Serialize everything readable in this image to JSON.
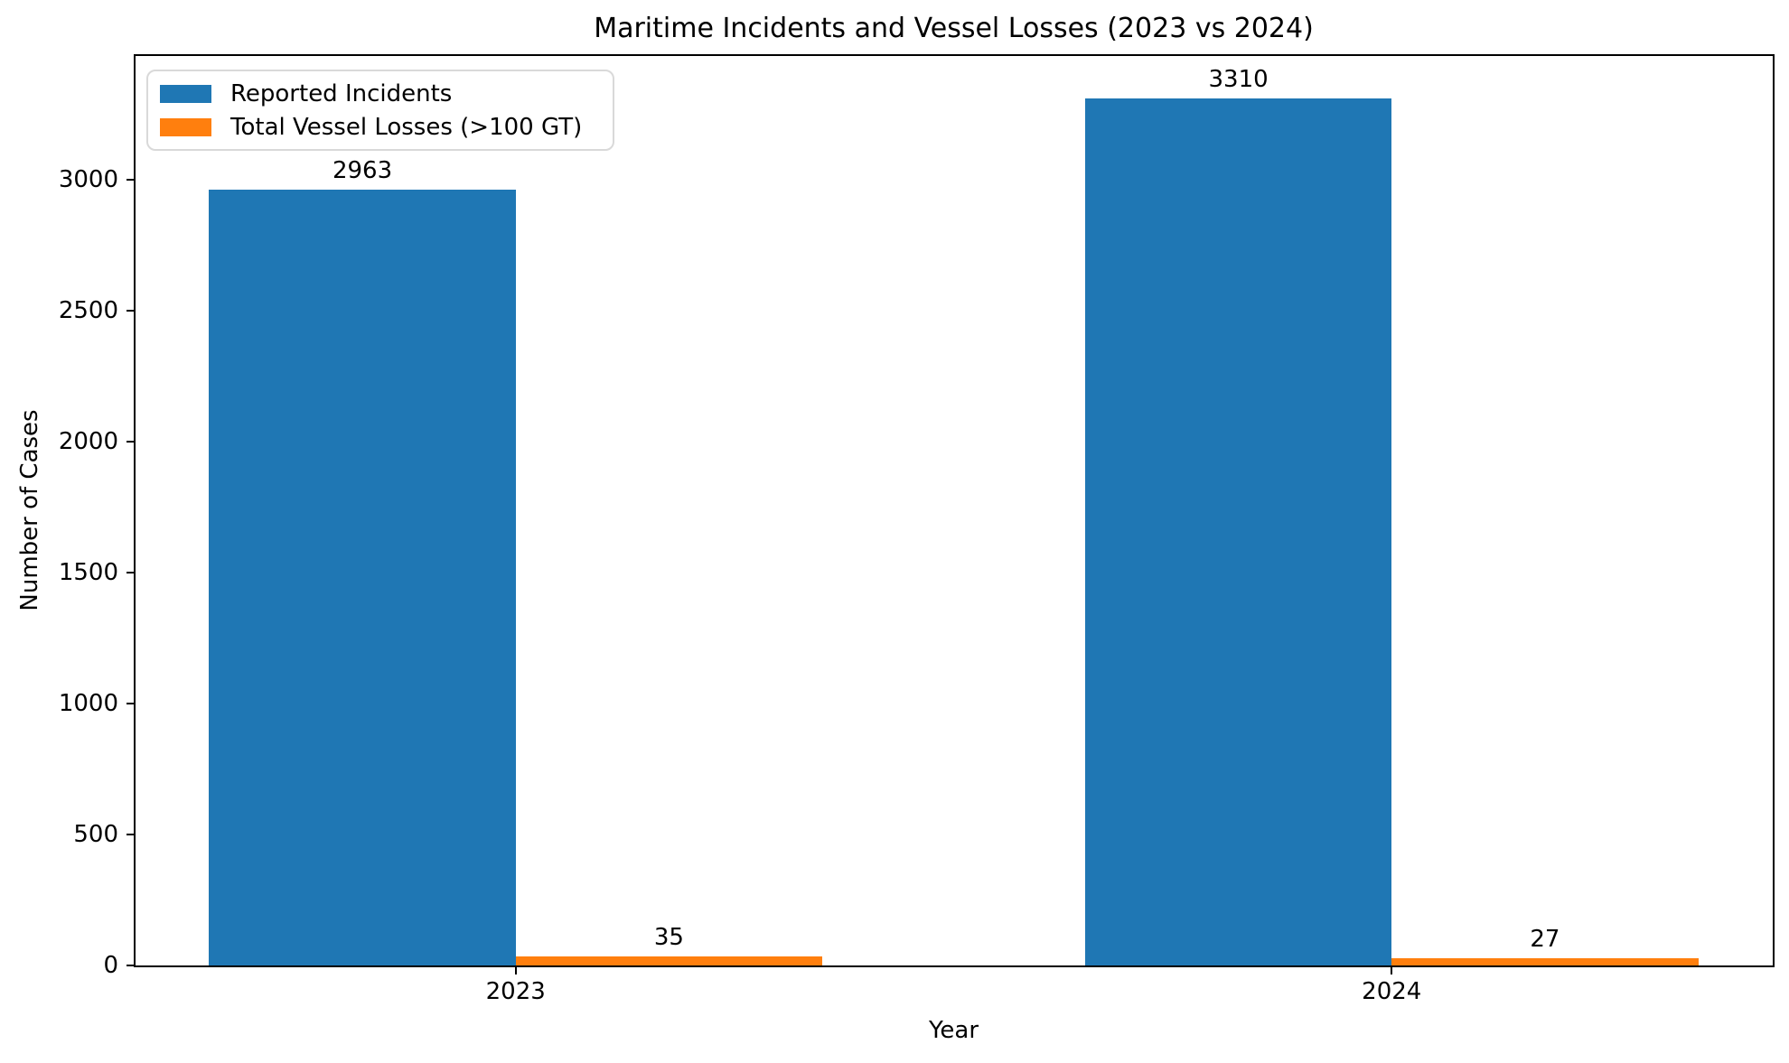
{
  "chart_data": {
    "type": "bar",
    "title": "Maritime Incidents and Vessel Losses (2023 vs 2024)",
    "xlabel": "Year",
    "ylabel": "Number of Cases",
    "categories": [
      "2023",
      "2024"
    ],
    "series": [
      {
        "name": "Reported Incidents",
        "color": "#1f77b4",
        "values": [
          2963,
          3310
        ]
      },
      {
        "name": "Total Vessel Losses (>100 GT)",
        "color": "#ff7f0e",
        "values": [
          35,
          27
        ]
      }
    ],
    "bar_value_labels": [
      [
        2963,
        3310
      ],
      [
        35,
        27
      ]
    ],
    "yticks": [
      0,
      500,
      1000,
      1500,
      2000,
      2500,
      3000
    ],
    "ylim": [
      0,
      3475.5
    ],
    "xlim": [
      -0.435,
      1.435
    ],
    "bar_width": 0.35,
    "legend": {
      "position": "upper left",
      "entries": [
        "Reported Incidents",
        "Total Vessel Losses (>100 GT)"
      ]
    },
    "grid": false,
    "axis_color": "#000000",
    "background_color": "#ffffff"
  }
}
